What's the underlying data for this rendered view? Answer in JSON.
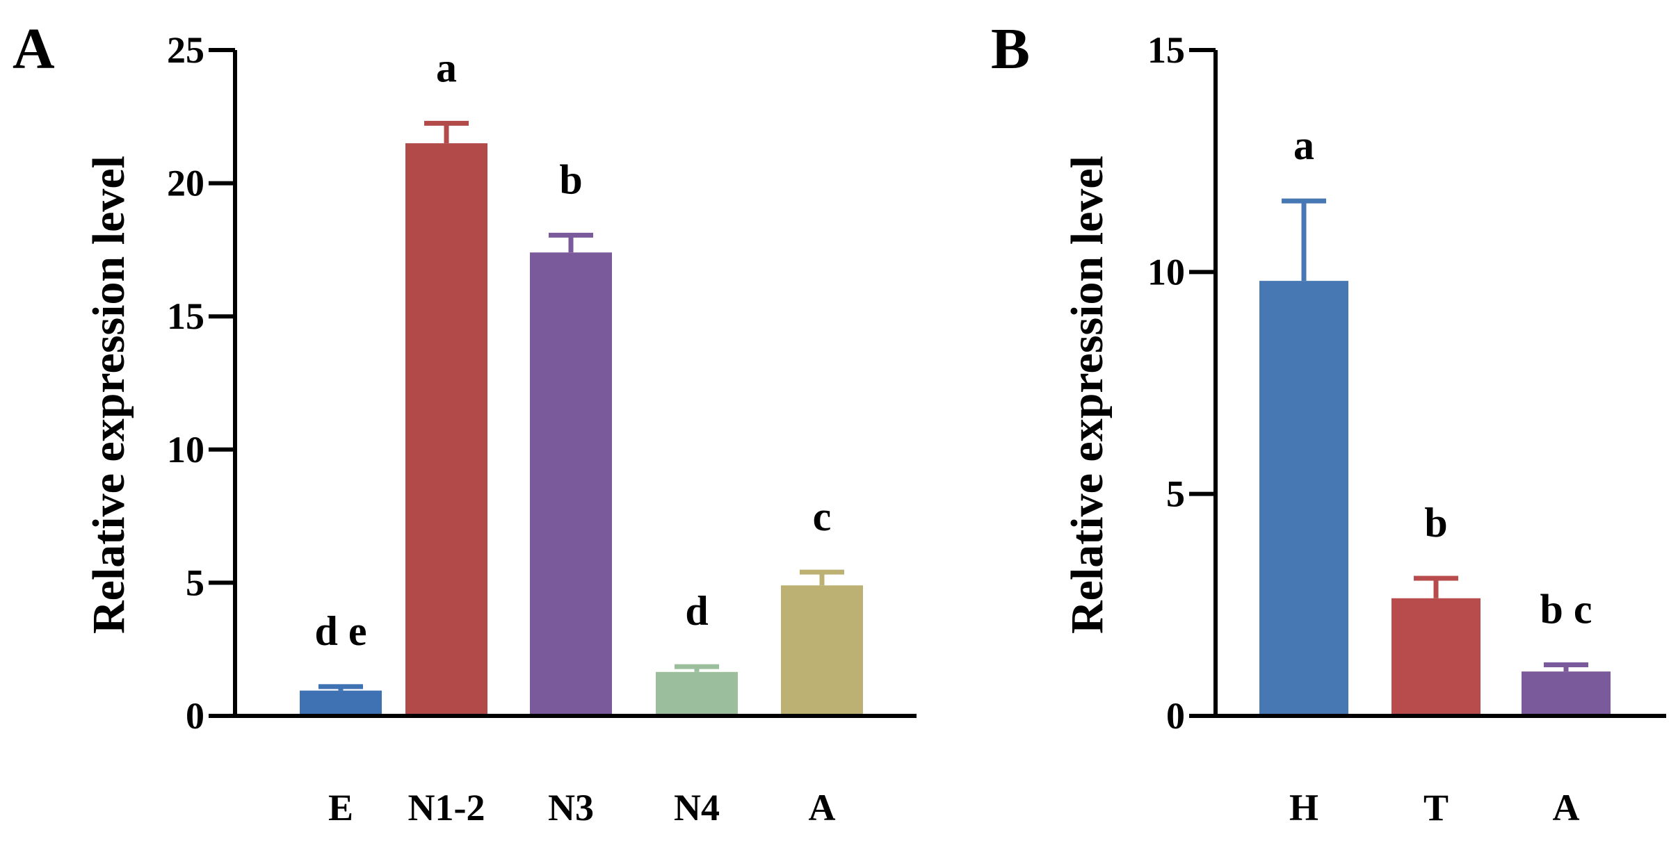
{
  "chart_data": [
    {
      "type": "bar",
      "panel": "A",
      "ylabel": "Relative expression level",
      "xlabel": "",
      "ylim": [
        0,
        25
      ],
      "yticks": [
        0,
        5,
        10,
        15,
        20,
        25
      ],
      "categories": [
        "E",
        "N1-2",
        "N3",
        "N4",
        "A"
      ],
      "values": [
        0.95,
        21.5,
        17.4,
        1.65,
        4.9
      ],
      "errors": [
        0.15,
        0.75,
        0.65,
        0.2,
        0.5
      ],
      "significance": [
        "d e",
        "a",
        "b",
        "d",
        "c"
      ],
      "colors": [
        "#3f72b3",
        "#b24a4a",
        "#7b5a9b",
        "#9bbf9d",
        "#bcb173"
      ]
    },
    {
      "type": "bar",
      "panel": "B",
      "ylabel": "Relative expression level",
      "xlabel": "",
      "ylim": [
        0,
        15
      ],
      "yticks": [
        0,
        5,
        10,
        15
      ],
      "categories": [
        "H",
        "T",
        "A"
      ],
      "values": [
        9.8,
        2.65,
        1.0
      ],
      "errors": [
        1.8,
        0.45,
        0.15
      ],
      "significance": [
        "a",
        "b",
        "b c"
      ],
      "colors": [
        "#4878b3",
        "#b84c4c",
        "#7b5a9b"
      ]
    }
  ]
}
